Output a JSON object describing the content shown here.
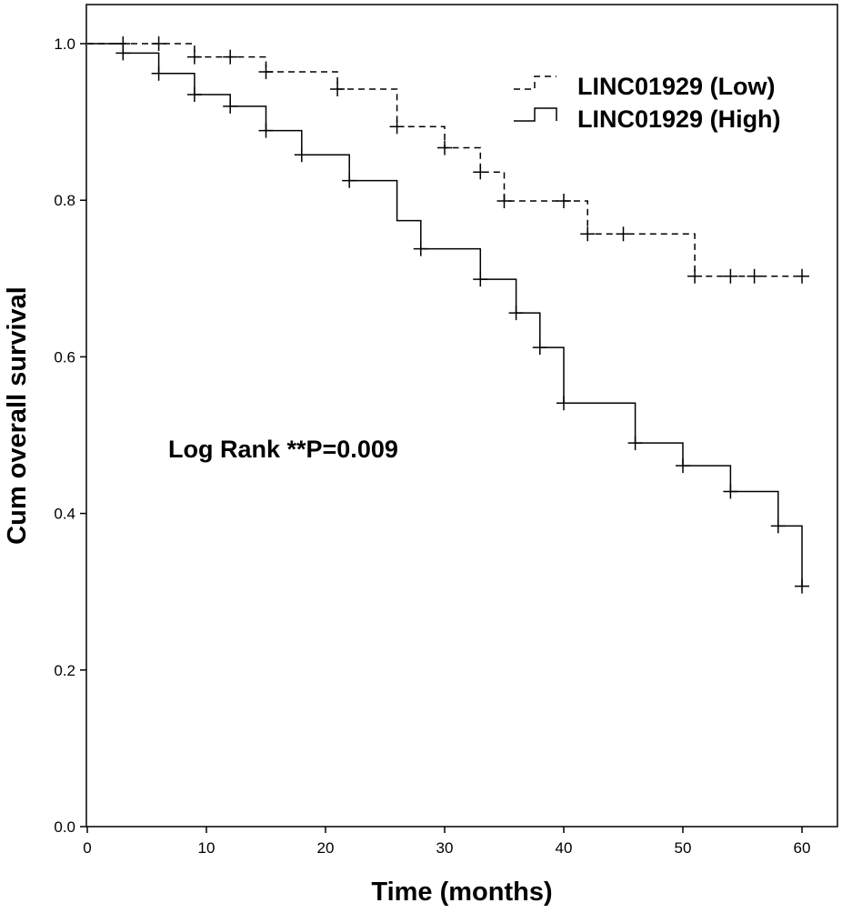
{
  "chart_data": {
    "type": "line",
    "subtype": "kaplan-meier",
    "xlabel": "Time (months)",
    "ylabel": "Cum overall survival",
    "xlim": [
      0,
      63
    ],
    "ylim": [
      0,
      1.0
    ],
    "xticks": [
      0,
      10,
      20,
      30,
      40,
      50,
      60
    ],
    "yticks": [
      0.0,
      0.2,
      0.4,
      0.6,
      0.8,
      1.0
    ],
    "ytick_labels": [
      "0.0",
      "0.2",
      "0.4",
      "0.6",
      "0.8",
      "1.0"
    ],
    "grid": false,
    "legend_position": "top-right",
    "annotation": "Log Rank **P=0.009",
    "series": [
      {
        "name": "LINC01929 (Low)",
        "line_style": "dashed",
        "color": "#000000",
        "steps": [
          [
            0,
            1.0
          ],
          [
            9,
            0.983
          ],
          [
            15,
            0.964
          ],
          [
            21,
            0.942
          ],
          [
            26,
            0.894
          ],
          [
            30,
            0.867
          ],
          [
            33,
            0.836
          ],
          [
            35,
            0.799
          ],
          [
            42,
            0.757
          ],
          [
            51,
            0.703
          ],
          [
            60,
            0.703
          ]
        ],
        "censored": [
          [
            3,
            1.0
          ],
          [
            6,
            1.0
          ],
          [
            9,
            0.983
          ],
          [
            12,
            0.983
          ],
          [
            15,
            0.964
          ],
          [
            21,
            0.942
          ],
          [
            26,
            0.894
          ],
          [
            30,
            0.867
          ],
          [
            33,
            0.836
          ],
          [
            35,
            0.799
          ],
          [
            40,
            0.799
          ],
          [
            42,
            0.757
          ],
          [
            45,
            0.757
          ],
          [
            51,
            0.703
          ],
          [
            54,
            0.703
          ],
          [
            56,
            0.703
          ],
          [
            60,
            0.703
          ]
        ]
      },
      {
        "name": "LINC01929 (High)",
        "line_style": "solid",
        "color": "#000000",
        "steps": [
          [
            0,
            1.0
          ],
          [
            3,
            0.988
          ],
          [
            6,
            0.962
          ],
          [
            9,
            0.935
          ],
          [
            12,
            0.92
          ],
          [
            15,
            0.889
          ],
          [
            18,
            0.858
          ],
          [
            22,
            0.825
          ],
          [
            26,
            0.774
          ],
          [
            28,
            0.738
          ],
          [
            33,
            0.699
          ],
          [
            36,
            0.656
          ],
          [
            38,
            0.612
          ],
          [
            40,
            0.541
          ],
          [
            46,
            0.49
          ],
          [
            50,
            0.461
          ],
          [
            54,
            0.428
          ],
          [
            58,
            0.384
          ],
          [
            60,
            0.307
          ]
        ],
        "censored": [
          [
            3,
            0.988
          ],
          [
            6,
            0.962
          ],
          [
            9,
            0.935
          ],
          [
            12,
            0.92
          ],
          [
            15,
            0.889
          ],
          [
            18,
            0.858
          ],
          [
            22,
            0.825
          ],
          [
            28,
            0.738
          ],
          [
            33,
            0.699
          ],
          [
            36,
            0.656
          ],
          [
            38,
            0.612
          ],
          [
            40,
            0.541
          ],
          [
            46,
            0.49
          ],
          [
            50,
            0.461
          ],
          [
            54,
            0.428
          ],
          [
            58,
            0.384
          ],
          [
            60,
            0.307
          ]
        ]
      }
    ]
  }
}
